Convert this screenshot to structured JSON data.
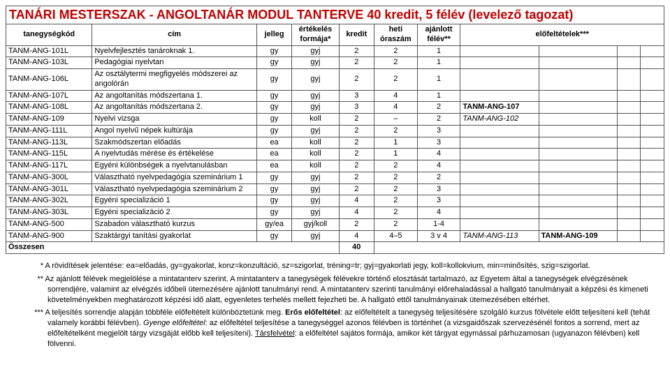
{
  "title": "TANÁRI MESTERSZAK - ANGOLTANÁR MODUL TANTERVE 40 kredit, 5 félév (levelező tagozat)",
  "headers": {
    "code": "tanegységkód",
    "title": "cím",
    "jelleg": "jelleg",
    "form": "értékelés formája*",
    "kredit": "kredit",
    "ora": "heti óraszám",
    "felev": "ajánlott félév**",
    "pre": "előfeltételek***"
  },
  "rows": [
    {
      "code": "TANM-ANG-101L",
      "title": "Nyelvfejlesztés tanároknak 1.",
      "j": "gy",
      "f": "gyj",
      "k": "2",
      "o": "2",
      "s": "1",
      "p1": "",
      "p2": ""
    },
    {
      "code": "TANM-ANG-103L",
      "title": "Pedagógiai nyelvtan",
      "j": "gy",
      "f": "gyj",
      "k": "2",
      "o": "2",
      "s": "1",
      "p1": "",
      "p2": ""
    },
    {
      "code": "TANM-ANG-106L",
      "title": "Az osztálytermi megfigyelés módszerei az angolórán",
      "j": "gy",
      "f": "gyj",
      "k": "2",
      "o": "2",
      "s": "1",
      "p1": "",
      "p2": ""
    },
    {
      "code": "TANM-ANG-107L",
      "title": "Az angoltanítás módszertana 1.",
      "j": "gy",
      "f": "gyj",
      "k": "3",
      "o": "4",
      "s": "1",
      "p1": "",
      "p2": ""
    },
    {
      "code": "TANM-ANG-108L",
      "title": "Az angoltanítás módszertana 2.",
      "j": "gy",
      "f": "gyj",
      "k": "3",
      "o": "4",
      "s": "2",
      "p1": "TANM-ANG-107",
      "p2": "",
      "p1bold": true
    },
    {
      "code": "TANM-ANG-109",
      "title": "Nyelvi vizsga",
      "j": "gy",
      "f": "koll",
      "k": "2",
      "o": "–",
      "s": "2",
      "p1": "TANM-ANG-102",
      "p2": "",
      "p1ital": true
    },
    {
      "code": "TANM-ANG-111L",
      "title": "Angol nyelvű népek kultúrája",
      "j": "gy",
      "f": "gyj",
      "k": "2",
      "o": "2",
      "s": "3",
      "p1": "",
      "p2": ""
    },
    {
      "code": "TANM-ANG-113L",
      "title": "Szakmódszertan előadás",
      "j": "ea",
      "f": "koll",
      "k": "2",
      "o": "1",
      "s": "3",
      "p1": "",
      "p2": ""
    },
    {
      "code": "TANM-ANG-115L",
      "title": "A nyelvtudás mérése és értékelése",
      "j": "ea",
      "f": "koll",
      "k": "2",
      "o": "1",
      "s": "4",
      "p1": "",
      "p2": ""
    },
    {
      "code": "TANM-ANG-117L",
      "title": "Egyéni különbségek a nyelvtanulásban",
      "j": "ea",
      "f": "koll",
      "k": "2",
      "o": "2",
      "s": "4",
      "p1": "",
      "p2": ""
    },
    {
      "code": "TANM-ANG-300L",
      "title": "Választható nyelvpedagógia szeminárium 1",
      "j": "gy",
      "f": "gyj",
      "k": "2",
      "o": "2",
      "s": "2",
      "p1": "",
      "p2": ""
    },
    {
      "code": "TANM-ANG-301L",
      "title": "Választható nyelvpedagógia szeminárium 2",
      "j": "gy",
      "f": "gyj",
      "k": "2",
      "o": "2",
      "s": "3",
      "p1": "",
      "p2": ""
    },
    {
      "code": "TANM-ANG-302L",
      "title": "Egyéni specializáció 1",
      "j": "gy",
      "f": "gyj",
      "k": "4",
      "o": "2",
      "s": "3",
      "p1": "",
      "p2": ""
    },
    {
      "code": "TANM-ANG-303L",
      "title": "Egyéni specializáció 2",
      "j": "gy",
      "f": "gyj",
      "k": "4",
      "o": "2",
      "s": "4",
      "p1": "",
      "p2": ""
    },
    {
      "code": "TANM-ANG-500",
      "title": "Szabadon választható kurzus",
      "j": "gy/ea",
      "f": "gyj/koll",
      "k": "2",
      "o": "2",
      "s": "1-4",
      "p1": "",
      "p2": ""
    },
    {
      "code": "TANM-ANG-900",
      "title": "Szaktárgyi tanítási gyakorlat",
      "j": "gy",
      "f": "gyj",
      "k": "4",
      "o": "4–5",
      "s": "3 v 4",
      "p1": "TANM-ANG-113",
      "p2": "TANM-ANG-109",
      "p1ital": true,
      "p2bold": true
    }
  ],
  "sum": {
    "label": "Összesen",
    "kredit": "40"
  },
  "notes": {
    "n1_mark": "*",
    "n1": "A rövidítések jelentése: ea=előadás, gy=gyakorlat, konz=konzultáció, sz=szigorlat, tréning=tr; gyj=gyakorlati jegy, koll=kollokvium, min=minősítés, szig=szigorlat.",
    "n2_mark": "**",
    "n2": "Az ajánlott félévek megjelölése a mintatanterv szerint. A mintatanterv a tanegységek félévekre történő elosztását tartalmazó, az Egyetem által a tanegységek elvégzésének sorrendjére, valamint az elvégzés időbeli ütemezésére ajánlott tanulmányi rend. A mintatanterv szerinti tanulmányi előrehaladással a hallgató tanulmányait a képzési és kimeneti követelményekben meghatározott képzési idő alatt, egyenletes terhelés mellett fejezheti be. A hallgató ettől tanulmányainak ütemezésében eltérhet.",
    "n3_mark": "***",
    "n3a": "A teljesítés sorrendje alapján többféle előfeltételt különböztetünk meg. ",
    "n3b_bold": "Erős előfeltétel",
    "n3b": ": az előfeltételt a tanegység teljesítésére szolgáló kurzus fölvétele előtt teljesíteni kell (tehát valamely korábbi félévben). ",
    "n3c_ital": "Gyenge előfeltétel",
    "n3c": ": az előfeltétel teljesítése a tanegységgel azonos félévben is történhet (a vizsgaidőszak szervezésénél fontos a sorrend, mert az előfeltételként megjelölt tárgy vizsgáját előbb kell teljesíteni). ",
    "n3d_u": "Társfelvétel",
    "n3d": ": a előfeltétel sajátos formája, amikor két tárgyat egymással párhuzamosan (ugyanazon félévben) kell fölvenni."
  },
  "style": {
    "title_color": "#c00000",
    "border_color": "#555555",
    "bg": "#ffffff"
  }
}
